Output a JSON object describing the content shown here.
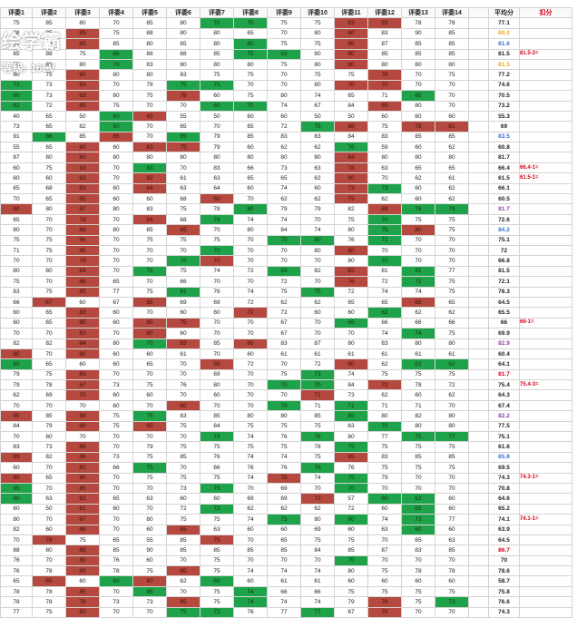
{
  "headers": [
    "评委1",
    "评委2",
    "评委3",
    "评委4",
    "评委5",
    "评委6",
    "评委7",
    "评委8",
    "评委9",
    "评委10",
    "评委11",
    "评委12",
    "评委13",
    "评委14",
    "",
    "平均分",
    "扣分"
  ],
  "watermark": {
    "logo": "绘学霸",
    "level": "等级: 16LV"
  },
  "colors": {
    "green": "#1fa34a",
    "red": "#b5483f",
    "avg_yellow": "#f5a623",
    "avg_blue": "#3b6fd6",
    "avg_purple": "#8e44ad",
    "avg_red": "#d0021b",
    "deduct_red": "#d0021b"
  },
  "rows": [
    {
      "scores": [
        "75",
        "85",
        "80",
        "70",
        "85",
        "80",
        "70",
        "70",
        "75",
        "75",
        "83",
        "93",
        "78",
        "78"
      ],
      "marks": "......gg..rr..",
      "avg": "77.1",
      "avg_color": ""
    },
    {
      "scores": [
        "88",
        "85",
        "85",
        "75",
        "88",
        "80",
        "80",
        "65",
        "70",
        "80",
        "80",
        "83",
        "90",
        "85"
      ],
      "marks": "..r.......r...",
      "avg": "80.2",
      "avg_color": "avg_yellow"
    },
    {
      "scores": [
        "80",
        "70",
        "85",
        "85",
        "80",
        "85",
        "80",
        "80",
        "75",
        "75",
        "85",
        "87",
        "85",
        "85"
      ],
      "marks": "..r....g..r...",
      "avg": "81.6",
      "avg_color": "avg_blue"
    },
    {
      "scores": [
        "85",
        "88",
        "75",
        "88",
        "88",
        "88",
        "85",
        "75",
        "83",
        "80",
        "80",
        "85",
        "85",
        "85"
      ],
      "marks": "...g...gg.r...",
      "avg": "81.5",
      "avg_color": "",
      "deduct": "81.5-2="
    },
    {
      "scores": [
        "70",
        "80",
        "80",
        "70",
        "83",
        "80",
        "80",
        "80",
        "75",
        "80",
        "80",
        "80",
        "80",
        "80"
      ],
      "marks": "...g......r...",
      "avg": "81.5",
      "avg_color": "avg_yellow"
    },
    {
      "scores": [
        "80",
        "75",
        "80",
        "80",
        "80",
        "83",
        "75",
        "75",
        "70",
        "75",
        "75",
        "78",
        "70",
        "75"
      ],
      "marks": "..r........r..",
      "avg": "77.2",
      "avg_color": ""
    },
    {
      "scores": [
        "73",
        "73",
        "83",
        "70",
        "78",
        "75",
        "75",
        "70",
        "70",
        "80",
        "70",
        "70",
        "70",
        "70"
      ],
      "marks": "g.r..gg...rr..",
      "avg": "74.6",
      "avg_color": ""
    },
    {
      "scores": [
        "60",
        "73",
        "83",
        "80",
        "75",
        "78",
        "60",
        "75",
        "80",
        "74",
        "65",
        "71",
        "65",
        "70"
      ],
      "marks": "g.r..r......g.",
      "avg": "70.5",
      "avg_color": ""
    },
    {
      "scores": [
        "62",
        "72",
        "85",
        "75",
        "70",
        "70",
        "80",
        "70",
        "74",
        "67",
        "84",
        "65",
        "80",
        "70"
      ],
      "marks": "g.r...gg...r..",
      "avg": "73.2",
      "avg_color": ""
    },
    {
      "scores": [
        "40",
        "65",
        "50",
        "60",
        "65",
        "55",
        "50",
        "60",
        "60",
        "50",
        "50",
        "60",
        "60",
        "60"
      ],
      "marks": "...gr..........",
      "avg": "55.3",
      "avg_color": ""
    },
    {
      "scores": [
        "73",
        "65",
        "82",
        "60",
        "70",
        "65",
        "70",
        "65",
        "72",
        "75",
        "68",
        "75",
        "78",
        "81"
      ],
      "marks": "...g.....gr.rr",
      "avg": "69",
      "avg_color": ""
    },
    {
      "scores": [
        "91",
        "66",
        "85",
        "85",
        "70",
        "85",
        "79",
        "85",
        "83",
        "83",
        "84",
        "83",
        "85",
        "85"
      ],
      "marks": ".g.r.g.......",
      "avg": "83.5",
      "avg_color": "avg_blue"
    },
    {
      "scores": [
        "55",
        "65",
        "60",
        "60",
        "83",
        "75",
        "79",
        "60",
        "62",
        "62",
        "76",
        "59",
        "60",
        "62"
      ],
      "marks": "..r.rr....g...",
      "avg": "60.8",
      "avg_color": ""
    },
    {
      "scores": [
        "87",
        "80",
        "80",
        "80",
        "80",
        "80",
        "80",
        "80",
        "80",
        "80",
        "84",
        "80",
        "80",
        "80"
      ],
      "marks": "..r.......r...",
      "avg": "81.7",
      "avg_color": ""
    },
    {
      "scores": [
        "60",
        "75",
        "83",
        "70",
        "83",
        "70",
        "83",
        "66",
        "73",
        "63",
        "78",
        "63",
        "65",
        "65"
      ],
      "marks": "..r.g.....r...",
      "avg": "66.4",
      "avg_color": "",
      "deduct": "66.4-1="
    },
    {
      "scores": [
        "60",
        "60",
        "83",
        "70",
        "82",
        "61",
        "63",
        "65",
        "65",
        "62",
        "80",
        "70",
        "62",
        "61"
      ],
      "marks": "..r.r.....r...",
      "avg": "61.5",
      "avg_color": "",
      "deduct": "61.5-1="
    },
    {
      "scores": [
        "65",
        "68",
        "83",
        "60",
        "64",
        "63",
        "64",
        "60",
        "74",
        "60",
        "73",
        "73",
        "60",
        "62"
      ],
      "marks": "..r.r.....rg..",
      "avg": "66.1",
      "avg_color": ""
    },
    {
      "scores": [
        "70",
        "65",
        "85",
        "60",
        "60",
        "68",
        "60",
        "70",
        "62",
        "62",
        "79",
        "62",
        "60",
        "62"
      ],
      "marks": "..r...r...r...",
      "avg": "60.5",
      "avg_color": ""
    },
    {
      "scores": [
        "90",
        "80",
        "87",
        "80",
        "83",
        "75",
        "78",
        "80",
        "79",
        "79",
        "82",
        "88",
        "78",
        "78"
      ],
      "marks": "r.r....g...rgg",
      "avg": "81.7",
      "avg_color": "avg_purple"
    },
    {
      "scores": [
        "65",
        "70",
        "78",
        "70",
        "84",
        "68",
        "76",
        "74",
        "74",
        "70",
        "75",
        "70",
        "75",
        "75"
      ],
      "marks": "..r.r.g....g..",
      "avg": "72.6",
      "avg_color": ""
    },
    {
      "scores": [
        "80",
        "70",
        "88",
        "80",
        "85",
        "65",
        "70",
        "80",
        "84",
        "74",
        "80",
        "75",
        "80",
        "75"
      ],
      "marks": "..r..r.....gr.",
      "avg": "84.2",
      "avg_color": "avg_blue"
    },
    {
      "scores": [
        "75",
        "75",
        "86",
        "70",
        "75",
        "75",
        "75",
        "70",
        "70",
        "80",
        "76",
        "71",
        "70",
        "70"
      ],
      "marks": "..r.....gg.g.",
      "avg": "75.1",
      "avg_color": ""
    },
    {
      "scores": [
        "71",
        "75",
        "85",
        "70",
        "70",
        "70",
        "70",
        "70",
        "70",
        "80",
        "80",
        "70",
        "70",
        "70"
      ],
      "marks": "..r...g...r...",
      "avg": "72",
      "avg_color": ""
    },
    {
      "scores": [
        "70",
        "70",
        "79",
        "70",
        "70",
        "70",
        "70",
        "70",
        "70",
        "70",
        "80",
        "70",
        "70",
        "70"
      ],
      "marks": "..r..gr....g..",
      "avg": "66.8",
      "avg_color": ""
    },
    {
      "scores": [
        "80",
        "80",
        "84",
        "70",
        "75",
        "75",
        "74",
        "72",
        "84",
        "82",
        "82",
        "81",
        "81",
        "77"
      ],
      "marks": "..r.g...g.r.g.",
      "avg": "81.5",
      "avg_color": ""
    },
    {
      "scores": [
        "75",
        "70",
        "88",
        "65",
        "70",
        "66",
        "70",
        "70",
        "72",
        "70",
        "76",
        "72",
        "72",
        "75"
      ],
      "marks": "..r.......r.g.",
      "avg": "72.1",
      "avg_color": ""
    },
    {
      "scores": [
        "83",
        "75",
        "85",
        "77",
        "75",
        "81",
        "76",
        "74",
        "75",
        "75",
        "72",
        "74",
        "74",
        "75"
      ],
      "marks": "..r..g...g....",
      "avg": "78.3",
      "avg_color": ""
    },
    {
      "scores": [
        "66",
        "67",
        "60",
        "67",
        "65",
        "69",
        "69",
        "72",
        "62",
        "62",
        "65",
        "65",
        "65",
        "65"
      ],
      "marks": ".r..r.......r.",
      "avg": "64.5",
      "avg_color": ""
    },
    {
      "scores": [
        "60",
        "65",
        "83",
        "60",
        "70",
        "60",
        "60",
        "72",
        "72",
        "60",
        "60",
        "62",
        "62",
        "62"
      ],
      "marks": "..r....r...g..",
      "avg": "65.5",
      "avg_color": ""
    },
    {
      "scores": [
        "60",
        "65",
        "85",
        "60",
        "85",
        "75",
        "70",
        "70",
        "67",
        "70",
        "66",
        "66",
        "66",
        "66"
      ],
      "marks": "..r.rr....g...",
      "avg": "66",
      "avg_color": "",
      "deduct": "66-1="
    },
    {
      "scores": [
        "70",
        "70",
        "83",
        "70",
        "80",
        "60",
        "70",
        "70",
        "67",
        "70",
        "70",
        "74",
        "74",
        "75"
      ],
      "marks": "..r.r.......g.",
      "avg": "69.9",
      "avg_color": ""
    },
    {
      "scores": [
        "82",
        "82",
        "84",
        "80",
        "70",
        "83",
        "85",
        "80",
        "83",
        "87",
        "80",
        "83",
        "80",
        "80"
      ],
      "marks": "..r.gr.r......",
      "avg": "82.9",
      "avg_color": "avg_purple"
    },
    {
      "scores": [
        "80",
        "70",
        "80",
        "60",
        "60",
        "61",
        "70",
        "60",
        "61",
        "61",
        "61",
        "61",
        "61",
        "61"
      ],
      "marks": "r.r...........",
      "avg": "60.4",
      "avg_color": ""
    },
    {
      "scores": [
        "60",
        "65",
        "60",
        "60",
        "65",
        "70",
        "59",
        "72",
        "70",
        "72",
        "60",
        "62",
        "62",
        "62"
      ],
      "marks": "g.....r...r.gg",
      "avg": "64.1",
      "avg_color": ""
    },
    {
      "scores": [
        "79",
        "75",
        "83",
        "70",
        "70",
        "70",
        "69",
        "70",
        "75",
        "73",
        "74",
        "75",
        "75",
        "75"
      ],
      "marks": "..r......g....",
      "avg": "81.7",
      "avg_color": "avg_red"
    },
    {
      "scores": [
        "79",
        "78",
        "87",
        "73",
        "75",
        "76",
        "80",
        "70",
        "70",
        "70",
        "84",
        "72",
        "78",
        "72"
      ],
      "marks": "..r.....gg.r..",
      "avg": "75.4",
      "avg_color": "",
      "deduct": "75.4-3="
    },
    {
      "scores": [
        "62",
        "69",
        "70",
        "60",
        "60",
        "70",
        "60",
        "70",
        "70",
        "71",
        "73",
        "62",
        "60",
        "62"
      ],
      "marks": "..r......r....",
      "avg": "64.3",
      "avg_color": ""
    },
    {
      "scores": [
        "70",
        "70",
        "70",
        "60",
        "70",
        "60",
        "70",
        "70",
        "70",
        "71",
        "71",
        "71",
        "71",
        "70"
      ],
      "marks": ".....r..g.g...",
      "avg": "67.4",
      "avg_color": ""
    },
    {
      "scores": [
        "85",
        "85",
        "88",
        "75",
        "75",
        "83",
        "85",
        "80",
        "80",
        "85",
        "85",
        "80",
        "82",
        "80"
      ],
      "marks": "r.r.g.....g...",
      "avg": "82.2",
      "avg_color": "avg_purple"
    },
    {
      "scores": [
        "84",
        "79",
        "80",
        "75",
        "90",
        "75",
        "84",
        "75",
        "75",
        "75",
        "63",
        "70",
        "80",
        "80"
      ],
      "marks": "..r.r......g..",
      "avg": "77.5",
      "avg_color": ""
    },
    {
      "scores": [
        "70",
        "80",
        "70",
        "70",
        "70",
        "70",
        "73",
        "74",
        "76",
        "76",
        "80",
        "77",
        "75",
        "77"
      ],
      "marks": "......g..g..gg",
      "avg": "75.1",
      "avg_color": ""
    },
    {
      "scores": [
        "83",
        "73",
        "88",
        "70",
        "79",
        "75",
        "75",
        "75",
        "75",
        "78",
        "75",
        "75",
        "75",
        "75"
      ],
      "marks": "..r.......g...",
      "avg": "61.6",
      "avg_color": ""
    },
    {
      "scores": [
        "89",
        "82",
        "86",
        "73",
        "75",
        "85",
        "76",
        "74",
        "74",
        "75",
        "85",
        "83",
        "85",
        "85"
      ],
      "marks": "r.r.......r..",
      "avg": "85.8",
      "avg_color": "avg_blue"
    },
    {
      "scores": [
        "60",
        "70",
        "80",
        "66",
        "75",
        "70",
        "66",
        "76",
        "76",
        "76",
        "76",
        "75",
        "75",
        "75"
      ],
      "marks": "..r.g....g...",
      "avg": "69.5",
      "avg_color": ""
    },
    {
      "scores": [
        "90",
        "65",
        "90",
        "70",
        "75",
        "75",
        "75",
        "74",
        "76",
        "74",
        "75",
        "79",
        "70",
        "70"
      ],
      "marks": "r.r.....r.g...",
      "avg": "74.3",
      "avg_color": "",
      "deduct": "74.3-1="
    },
    {
      "scores": [
        "65",
        "70",
        "85",
        "70",
        "70",
        "73",
        "73",
        "70",
        "69",
        "70",
        "70",
        "70",
        "70",
        "70"
      ],
      "marks": "g.r...g...g...",
      "avg": "70.8",
      "avg_color": ""
    },
    {
      "scores": [
        "60",
        "63",
        "82",
        "65",
        "63",
        "60",
        "60",
        "69",
        "69",
        "72",
        "57",
        "60",
        "62",
        "60"
      ],
      "marks": "g.r......r.gg.",
      "avg": "64.6",
      "avg_color": ""
    },
    {
      "scores": [
        "60",
        "50",
        "82",
        "60",
        "70",
        "72",
        "72",
        "62",
        "62",
        "62",
        "72",
        "60",
        "62",
        "60"
      ],
      "marks": "..r...g.....g.",
      "avg": "65.2",
      "avg_color": ""
    },
    {
      "scores": [
        "80",
        "70",
        "87",
        "70",
        "80",
        "75",
        "75",
        "74",
        "75",
        "80",
        "60",
        "74",
        "73",
        "77"
      ],
      "marks": "..r.....g.g.g.",
      "avg": "74.1",
      "avg_color": "",
      "deduct": "74.1-1="
    },
    {
      "scores": [
        "82",
        "60",
        "88",
        "70",
        "60",
        "65",
        "63",
        "60",
        "60",
        "69",
        "60",
        "63",
        "60",
        "60"
      ],
      "marks": "..r..r......g.",
      "avg": "63.9",
      "avg_color": ""
    },
    {
      "scores": [
        "70",
        "78",
        "75",
        "65",
        "55",
        "85",
        "75",
        "70",
        "65",
        "75",
        "75",
        "70",
        "65",
        "63"
      ],
      "marks": ".r....r......",
      "avg": "64.5",
      "avg_color": ""
    },
    {
      "scores": [
        "88",
        "80",
        "88",
        "85",
        "90",
        "85",
        "85",
        "85",
        "85",
        "84",
        "85",
        "87",
        "83",
        "85"
      ],
      "marks": "..r..........",
      "avg": "86.7",
      "avg_color": "avg_red"
    },
    {
      "scores": [
        "76",
        "70",
        "80",
        "76",
        "60",
        "70",
        "75",
        "70",
        "70",
        "70",
        "70",
        "70",
        "70",
        "70"
      ],
      "marks": "..r.......g...",
      "avg": "70",
      "avg_color": ""
    },
    {
      "scores": [
        "76",
        "78",
        "89",
        "78",
        "75",
        "85",
        "75",
        "74",
        "74",
        "74",
        "80",
        "75",
        "78",
        "78"
      ],
      "marks": "..r..r........",
      "avg": "78.6",
      "avg_color": ""
    },
    {
      "scores": [
        "65",
        "65",
        "60",
        "60",
        "60",
        "62",
        "60",
        "60",
        "61",
        "61",
        "60",
        "60",
        "60",
        "60"
      ],
      "marks": ".r.gr.g......",
      "avg": "58.7",
      "avg_color": ""
    },
    {
      "scores": [
        "78",
        "78",
        "85",
        "70",
        "85",
        "70",
        "75",
        "74",
        "66",
        "66",
        "75",
        "75",
        "75",
        "75"
      ],
      "marks": "..r.g..g.....",
      "avg": "75.8",
      "avg_color": ""
    },
    {
      "scores": [
        "78",
        "78",
        "78",
        "73",
        "73",
        "85",
        "75",
        "74",
        "74",
        "74",
        "79",
        "76",
        "75",
        "73"
      ],
      "marks": "..r..r.g...r.g",
      "avg": "76.6",
      "avg_color": ""
    },
    {
      "scores": [
        "77",
        "75",
        "80",
        "70",
        "70",
        "75",
        "72",
        "76",
        "77",
        "77",
        "67",
        "75",
        "70",
        "70"
      ],
      "marks": "..r..gg..g.r..",
      "avg": "74.3",
      "avg_color": ""
    }
  ]
}
